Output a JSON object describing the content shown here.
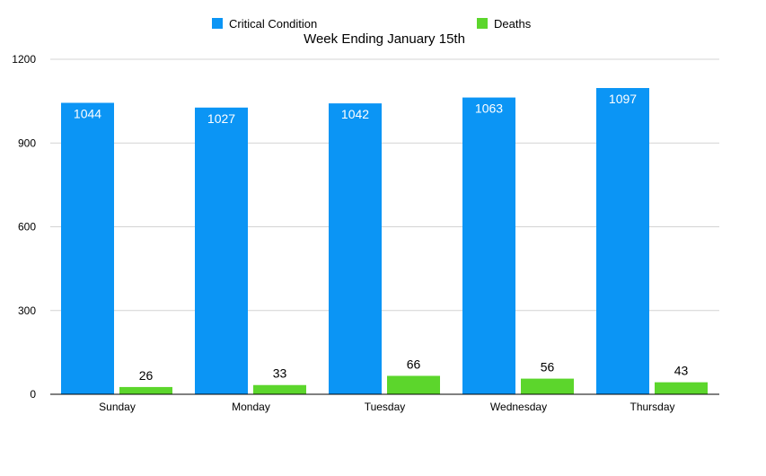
{
  "chart_data": {
    "type": "bar",
    "title": "Week Ending January 15th",
    "xlabel": "",
    "ylabel": "",
    "ylim": [
      0,
      1200
    ],
    "yticks": [
      0,
      300,
      600,
      900,
      1200
    ],
    "grid": true,
    "legend_position": "top",
    "categories": [
      "Sunday",
      "Monday",
      "Tuesday",
      "Wednesday",
      "Thursday"
    ],
    "series": [
      {
        "name": "Critical Condition",
        "color": "#0b95f5",
        "values": [
          1044,
          1027,
          1042,
          1063,
          1097
        ]
      },
      {
        "name": "Deaths",
        "color": "#5cd62c",
        "values": [
          26,
          33,
          66,
          56,
          43
        ]
      }
    ]
  }
}
